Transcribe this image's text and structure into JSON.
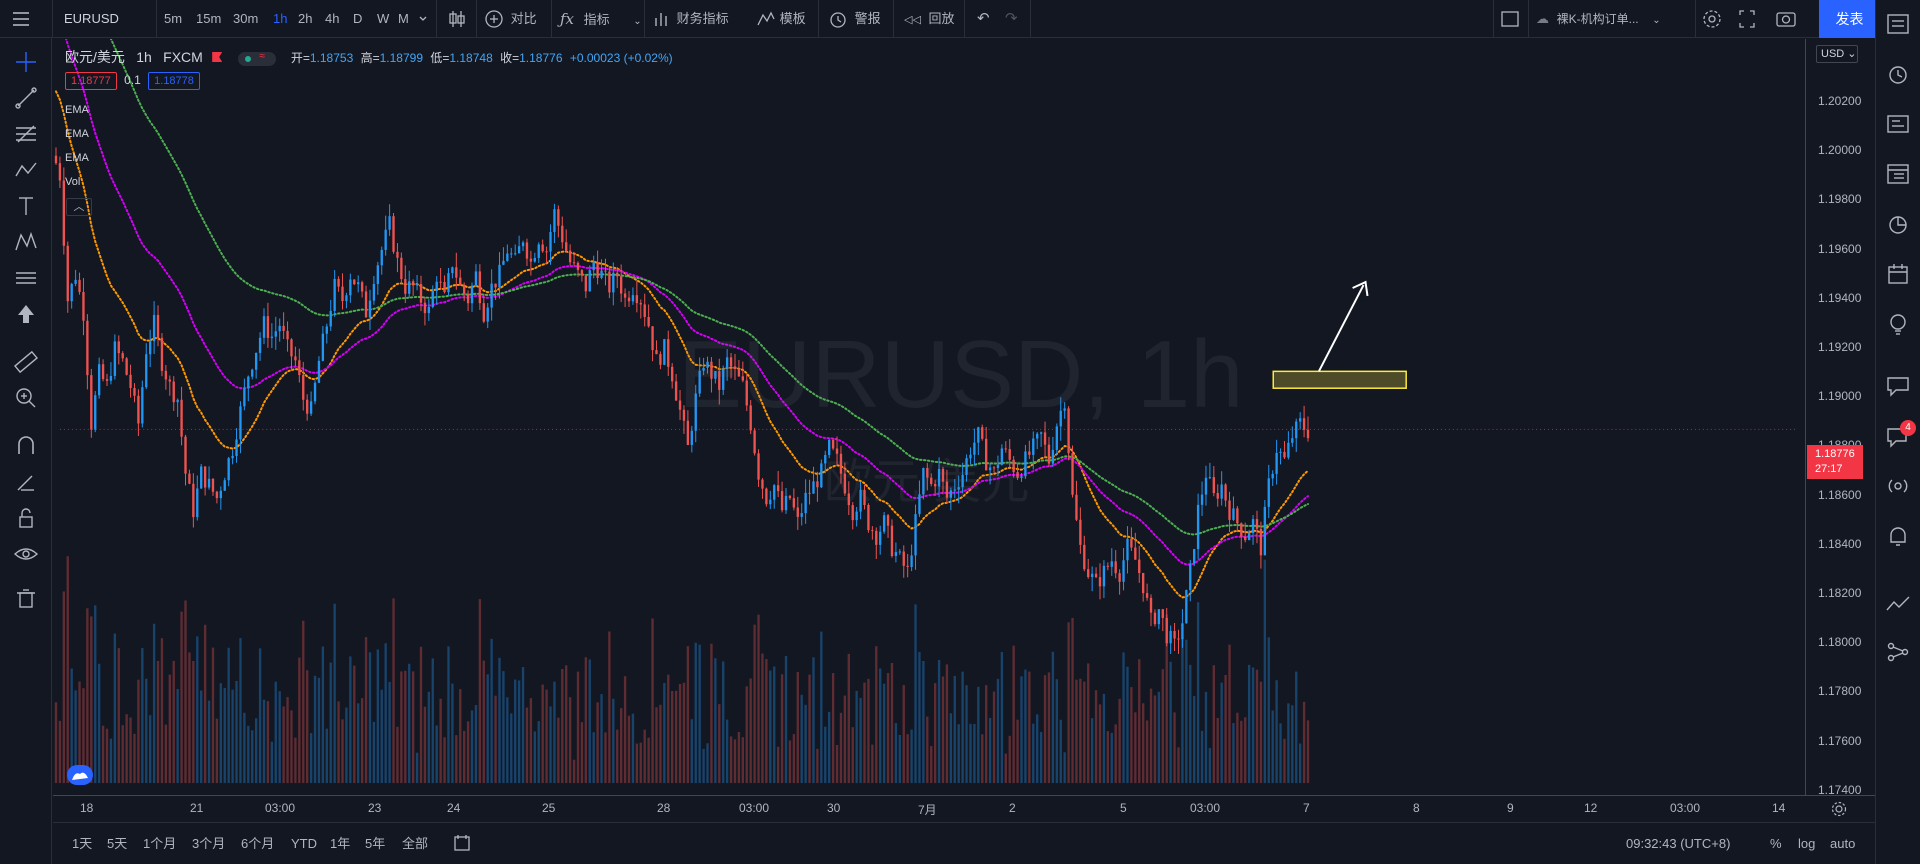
{
  "topbar": {
    "symbol": "EURUSD",
    "intervals": [
      "5m",
      "15m",
      "30m",
      "1h",
      "2h",
      "4h",
      "D",
      "W",
      "M"
    ],
    "active_interval": "1h",
    "compare_label": "对比",
    "indicators_label": "指标",
    "financials_label": "财务指标",
    "templates_label": "模板",
    "alert_label": "警报",
    "replay_label": "回放",
    "layout_name": "裸K-机构订单...",
    "publish_label": "发表"
  },
  "legend": {
    "title": "欧元/美元",
    "interval": "1h",
    "source": "FXCM",
    "open_label": "开=",
    "open": "1.18753",
    "high_label": "高=",
    "high": "1.18799",
    "low_label": "低=",
    "low": "1.18748",
    "close_label": "收=",
    "close": "1.18776",
    "change": "+0.00023 (+0.02%)",
    "bid": "1.18777",
    "spread": "0.1",
    "ask": "1.18778",
    "indicators": [
      "EMA",
      "EMA",
      "EMA",
      "Vol"
    ]
  },
  "watermark": {
    "main": "EURUSD, 1h",
    "sub": "欧元/美元"
  },
  "price_axis": {
    "currency": "USD",
    "labels": [
      "1.20200",
      "1.20000",
      "1.19800",
      "1.19600",
      "1.19400",
      "1.19200",
      "1.19000",
      "1.18800",
      "1.18600",
      "1.18400",
      "1.18200",
      "1.18000",
      "1.17800",
      "1.17600",
      "1.17400"
    ],
    "current_price": "1.18776",
    "countdown": "27:17"
  },
  "time_axis": {
    "labels": [
      "18",
      "21",
      "03:00",
      "23",
      "24",
      "25",
      "28",
      "03:00",
      "30",
      "7月",
      "2",
      "5",
      "03:00",
      "7",
      "8",
      "9",
      "12",
      "03:00",
      "14"
    ]
  },
  "bottombar": {
    "ranges": [
      "1天",
      "5天",
      "1个月",
      "3个月",
      "6个月",
      "YTD",
      "1年",
      "5年",
      "全部"
    ],
    "clock": "09:32:43 (UTC+8)",
    "percent": "%",
    "log": "log",
    "auto": "auto"
  },
  "right_badge": "4",
  "colors": {
    "bg": "#131722",
    "up": "#2196f3",
    "down": "#ef5350",
    "ema_fast": "#ff9800",
    "ema_mid": "#d500f9",
    "ema_slow": "#4caf50",
    "accent": "#2962ff",
    "zone": "#ffeb3b"
  },
  "chart_data": {
    "type": "candlestick",
    "symbol": "EURUSD",
    "interval": "1h",
    "ylim": [
      1.1735,
      1.2035
    ],
    "close_series": [
      1.198,
      1.193,
      1.194,
      1.1925,
      1.188,
      1.19,
      1.1895,
      1.191,
      1.1905,
      1.1895,
      1.188,
      1.191,
      1.192,
      1.1905,
      1.1895,
      1.189,
      1.186,
      1.1845,
      1.186,
      1.1855,
      1.185,
      1.186,
      1.187,
      1.1885,
      1.19,
      1.191,
      1.192,
      1.1915,
      1.192,
      1.191,
      1.1905,
      1.189,
      1.1885,
      1.1905,
      1.192,
      1.1935,
      1.193,
      1.194,
      1.1935,
      1.1925,
      1.194,
      1.195,
      1.196,
      1.1945,
      1.1935,
      1.1935,
      1.193,
      1.1925,
      1.194,
      1.193,
      1.1945,
      1.1935,
      1.193,
      1.194,
      1.1925,
      1.1935,
      1.194,
      1.195,
      1.1945,
      1.1955,
      1.1945,
      1.1955,
      1.195,
      1.1965,
      1.1955,
      1.1945,
      1.194,
      1.1935,
      1.1945,
      1.194,
      1.1935,
      1.194,
      1.193,
      1.1935,
      1.193,
      1.192,
      1.1905,
      1.191,
      1.19,
      1.1885,
      1.187,
      1.189,
      1.1905,
      1.19,
      1.1895,
      1.1905,
      1.19,
      1.1895,
      1.188,
      1.186,
      1.185,
      1.1855,
      1.1845,
      1.185,
      1.184,
      1.185,
      1.1855,
      1.186,
      1.187,
      1.1865,
      1.1855,
      1.1845,
      1.185,
      1.184,
      1.1835,
      1.184,
      1.183,
      1.1825,
      1.182,
      1.184,
      1.186,
      1.1855,
      1.186,
      1.185,
      1.1855,
      1.186,
      1.187,
      1.1875,
      1.1865,
      1.186,
      1.187,
      1.1865,
      1.186,
      1.1865,
      1.187,
      1.1875,
      1.1865,
      1.188,
      1.189,
      1.185,
      1.183,
      1.182,
      1.1815,
      1.182,
      1.1825,
      1.182,
      1.183,
      1.1825,
      1.1815,
      1.18,
      1.1805,
      1.1795,
      1.179,
      1.18,
      1.182,
      1.1845,
      1.186,
      1.185,
      1.1855,
      1.1845,
      1.184,
      1.1835,
      1.184,
      1.183,
      1.1855,
      1.187,
      1.1865,
      1.1875,
      1.188,
      1.1877
    ],
    "last_close": 1.18776,
    "volume_series": "relative, shown as bars at bottom of pane",
    "ema_series": [
      "EMA",
      "EMA",
      "EMA"
    ]
  }
}
